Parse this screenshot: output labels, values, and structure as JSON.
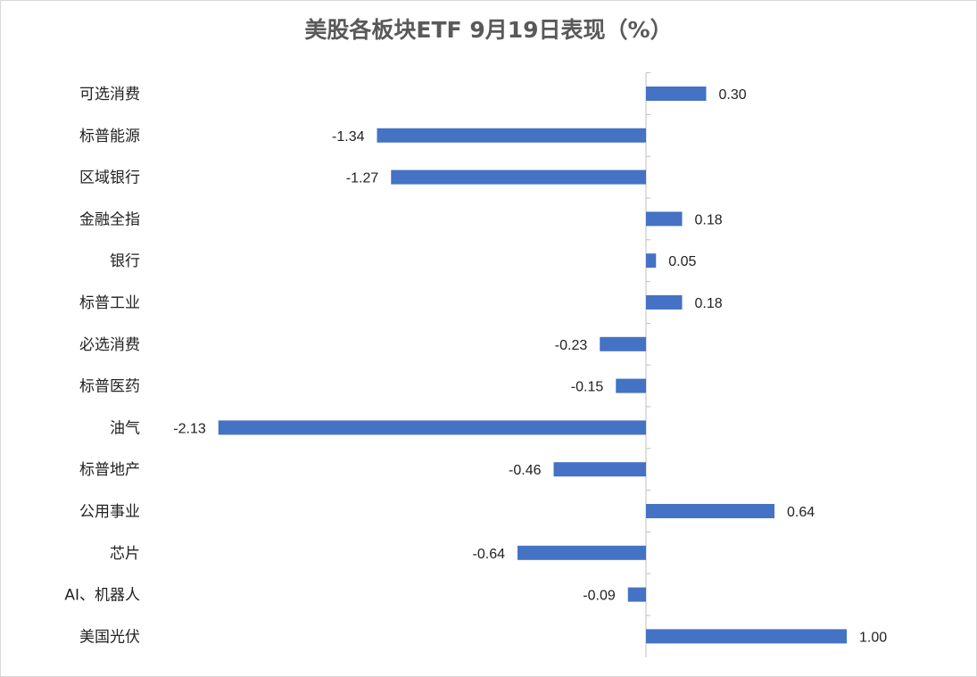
{
  "chart_data": {
    "type": "bar",
    "orientation": "horizontal",
    "title": "美股各板块ETF  9月19日表现（%）",
    "categories": [
      "可选消费",
      "标普能源",
      "区域银行",
      "金融全指",
      "银行",
      "标普工业",
      "必选消费",
      "标普医药",
      "油气",
      "标普地产",
      "公用事业",
      "芯片",
      "AI、机器人",
      "美国光伏"
    ],
    "values": [
      0.3,
      -1.34,
      -1.27,
      0.18,
      0.05,
      0.18,
      -0.23,
      -0.15,
      -2.13,
      -0.46,
      0.64,
      -0.64,
      -0.09,
      1.0
    ],
    "value_labels": [
      "0.30",
      "-1.34",
      "-1.27",
      "0.18",
      "0.05",
      "0.18",
      "-0.23",
      "-0.15",
      "-2.13",
      "-0.46",
      "0.64",
      "-0.64",
      "-0.09",
      "1.00"
    ],
    "xlim": [
      -2.13,
      1.0
    ],
    "grid": false,
    "legend": "none",
    "bar_color": "#4472C4"
  }
}
